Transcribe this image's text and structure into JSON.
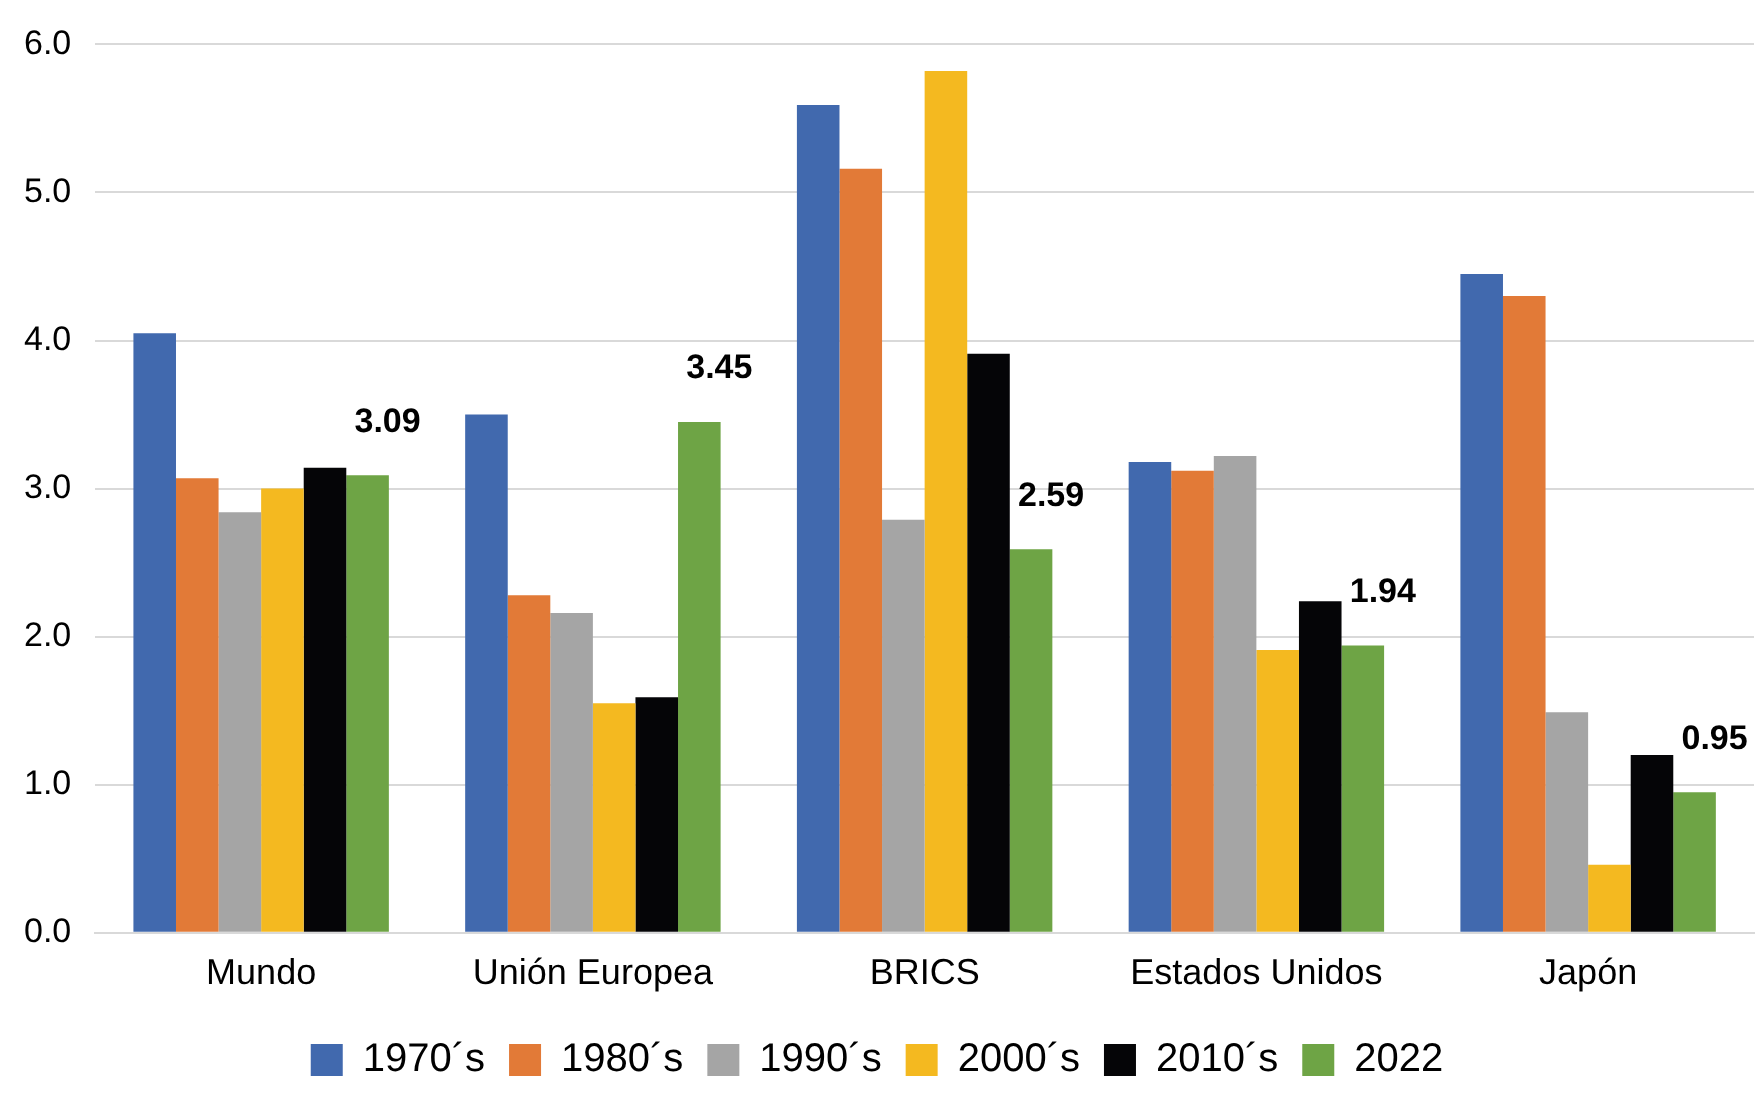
{
  "chart_data": {
    "type": "bar",
    "categories": [
      "Mundo",
      "Unión Europea",
      "BRICS",
      "Estados Unidos",
      "Japón"
    ],
    "series": [
      {
        "name": "1970´s",
        "color": "#4169ae",
        "values": [
          4.05,
          3.5,
          5.59,
          3.18,
          4.45
        ]
      },
      {
        "name": "1980´s",
        "color": "#e27a37",
        "values": [
          3.07,
          2.28,
          5.16,
          3.12,
          4.3
        ]
      },
      {
        "name": "1990´s",
        "color": "#a5a5a5",
        "values": [
          2.84,
          2.16,
          2.79,
          3.22,
          1.49
        ]
      },
      {
        "name": "2000´s",
        "color": "#f4b920",
        "values": [
          3.0,
          1.55,
          5.82,
          1.91,
          0.46
        ]
      },
      {
        "name": "2010´s",
        "color": "#050507",
        "values": [
          3.14,
          1.59,
          3.91,
          2.24,
          1.2
        ]
      },
      {
        "name": "2022",
        "color": "#6ea445",
        "values": [
          3.09,
          3.45,
          2.59,
          1.94,
          0.95
        ],
        "value_labels": [
          "3.09",
          "3.45",
          "2.59",
          "1.94",
          "0.95"
        ]
      }
    ],
    "ylim": [
      0,
      6
    ],
    "yticks": [
      {
        "value": 0,
        "label": "0.0"
      },
      {
        "value": 1,
        "label": "1.0"
      },
      {
        "value": 2,
        "label": "2.0"
      },
      {
        "value": 3,
        "label": "3.0"
      },
      {
        "value": 4,
        "label": "4.0"
      },
      {
        "value": 5,
        "label": "5.0"
      },
      {
        "value": 6,
        "label": "6.0"
      }
    ],
    "grid": "y",
    "legend": "bottom"
  }
}
